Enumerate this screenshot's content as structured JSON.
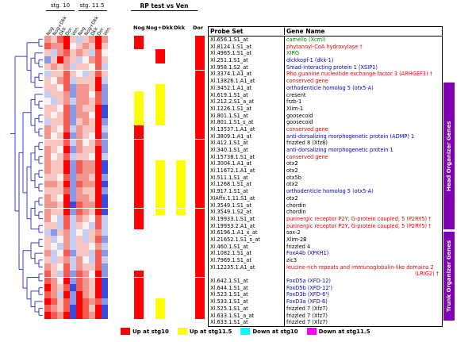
{
  "figure": {
    "stage_labels": [
      "stg. 10",
      "stg. 11.5"
    ],
    "rp_header": "RP test vs Ven",
    "rp_columns": [
      "Nog",
      "Nog+Dkk",
      "Dkk",
      "Dor"
    ],
    "heat_columns": [
      "Nog",
      "Nog+Dkk",
      "Dkk",
      "Dor",
      "Ven",
      "Nog",
      "Nog+Dkk",
      "Dkk",
      "Dor",
      "Ven"
    ],
    "table_headers": [
      "Probe Set",
      "Gene Name"
    ],
    "side_bars": [
      {
        "label": "Head Organizer Genes",
        "color": "#8000b4"
      },
      {
        "label": "Trunk Organizer Genes",
        "color": "#8000b4"
      }
    ],
    "legend": [
      {
        "label": "Up at stg10",
        "color": "#ff0000"
      },
      {
        "label": "Up at stg11.5",
        "color": "#ffff00"
      },
      {
        "label": "Down at stg10",
        "color": "#00ffff"
      },
      {
        "label": "Down at stg11.5",
        "color": "#ff00ff"
      }
    ]
  },
  "chart_data": {
    "type": "heatmap",
    "stage_groups": [
      "stg. 10",
      "stg. 11.5"
    ],
    "palette": {
      "r4": "#ff0000",
      "r3": "#f55a50",
      "r2": "#f2958d",
      "r1": "#f7c6c0",
      "w": "#faf2f0",
      "b1": "#c5cdf2",
      "b2": "#8b9ae8",
      "b3": "#3a4ade"
    },
    "gene_colors": {
      "green": "#008000",
      "red": "#ee0000",
      "blue": "#0000bb",
      "black": "#000000"
    },
    "rp_mark_colors": {
      "red": "#ff0000",
      "yellow": "#ffff00",
      "cyan": "#00ffff",
      "magenta": "#ff00ff"
    },
    "rows": [
      {
        "probe": "Xl.656.1.S1_at",
        "gene": "camello (Xcml)",
        "gene_color": "green",
        "heat": [
          "r2",
          "r1",
          "r3",
          "r4",
          "r1",
          "b1",
          "r1",
          "r2",
          "r4",
          "r2"
        ],
        "rp": [
          "red",
          "",
          "",
          "red"
        ]
      },
      {
        "probe": "Xl.8124.1.S1_at",
        "gene": "phytanoyl-CoA hydroxylase †",
        "gene_color": "red",
        "heat": [
          "r3",
          "r2",
          "r2",
          "r4",
          "w",
          "r1",
          "r2",
          "r1",
          "r4",
          "r1"
        ],
        "rp": [
          "red",
          "",
          "",
          "red"
        ]
      },
      {
        "probe": "Xl.4965.1.S1_at",
        "gene": "XIRG",
        "gene_color": "green",
        "heat": [
          "r1",
          "b1",
          "r2",
          "r3",
          "r1",
          "r2",
          "r1",
          "b1",
          "r3",
          "w"
        ],
        "rp": [
          "",
          "red",
          "",
          "red"
        ]
      },
      {
        "probe": "Xl.251.1.S1_at",
        "gene": "dickkopf-1 (dkk-1)",
        "gene_color": "blue",
        "heat": [
          "b2",
          "r1",
          "r4",
          "r2",
          "r1",
          "b1",
          "w",
          "r2",
          "r3",
          "r1"
        ],
        "rp": [
          "",
          "red",
          "",
          "red"
        ]
      },
      {
        "probe": "Xl.958.1.S2_at",
        "gene": "Smad-interacting protein 1 (XSIP1)",
        "gene_color": "blue",
        "heat": [
          "r1",
          "r2",
          "r1",
          "r2",
          "b1",
          "r1",
          "r1",
          "w",
          "r3",
          "b1"
        ],
        "rp": [
          "",
          "",
          "",
          "red"
        ]
      },
      {
        "probe": "Xl.3374.1.A1_at",
        "gene": "Rho guanine nucleotide exchange factor 3 (ARHGEF3) †",
        "gene_color": "red",
        "heat": [
          "b1",
          "r1",
          "r1",
          "r3",
          "r1",
          "w",
          "b1",
          "r1",
          "r3",
          "r1"
        ],
        "rp": [
          "",
          "",
          "",
          "red"
        ]
      },
      {
        "probe": "Xl.13826.1.A1_at",
        "gene": "conserved gene",
        "gene_color": "red",
        "heat": [
          "r1",
          "w",
          "r2",
          "r3",
          "b1",
          "r1",
          "r1",
          "r1",
          "r4",
          "b1"
        ],
        "rp": [
          "",
          "",
          "",
          "red"
        ]
      },
      {
        "probe": "Xl.3452.1.A1_at",
        "gene": "orthodenticle homolog 5 (otx5-A)",
        "gene_color": "blue",
        "heat": [
          "r1",
          "r1",
          "w",
          "r3",
          "b2",
          "r2",
          "r2",
          "r1",
          "r4",
          "b2"
        ],
        "rp": [
          "",
          "yellow",
          "",
          "red"
        ]
      },
      {
        "probe": "Xl.619.1.S1_at",
        "gene": "cresent",
        "gene_color": "black",
        "heat": [
          "b1",
          "r1",
          "r1",
          "r2",
          "b2",
          "r2",
          "r2",
          "w",
          "r3",
          "b2"
        ],
        "rp": [
          "yellow",
          "yellow",
          "",
          "red"
        ]
      },
      {
        "probe": "Xl.212.2.S1_a_at",
        "gene": "frzb-1",
        "gene_color": "black",
        "heat": [
          "w",
          "b1",
          "r1",
          "r2",
          "b1",
          "r2",
          "r2",
          "r1",
          "r3",
          "b2"
        ],
        "rp": [
          "yellow",
          "yellow",
          "",
          "red"
        ]
      },
      {
        "probe": "Xl.1226.1.S1_at",
        "gene": "Xlim-1",
        "gene_color": "black",
        "heat": [
          "r1",
          "r1",
          "w",
          "r3",
          "b2",
          "r2",
          "r1",
          "r1",
          "r4",
          "b3"
        ],
        "rp": [
          "yellow",
          "yellow",
          "",
          "red"
        ]
      },
      {
        "probe": "Xl.801.1.S1_at",
        "gene": "goosecoid",
        "gene_color": "black",
        "heat": [
          "r1",
          "w",
          "r1",
          "r3",
          "b2",
          "r2",
          "r2",
          "w",
          "r4",
          "b3"
        ],
        "rp": [
          "yellow",
          "yellow",
          "",
          "red"
        ]
      },
      {
        "probe": "Xl.801.1.S1_s_at",
        "gene": "goosecoid",
        "gene_color": "black",
        "heat": [
          "b1",
          "r1",
          "r1",
          "r3",
          "b2",
          "r1",
          "r2",
          "r1",
          "r4",
          "b2"
        ],
        "rp": [
          "yellow",
          "yellow",
          "",
          "red"
        ]
      },
      {
        "probe": "Xl.13537.1.A1_at",
        "gene": "conserved gene",
        "gene_color": "red",
        "heat": [
          "r2",
          "r1",
          "w",
          "r3",
          "b1",
          "r2",
          "r1",
          "r1",
          "r4",
          "b1"
        ],
        "rp": [
          "red",
          "",
          "",
          "red"
        ]
      },
      {
        "probe": "Xl.3809.1.A1_at",
        "gene": "anti-dorsalizing morphogenetic protein (ADMP) 1",
        "gene_color": "blue",
        "heat": [
          "r2",
          "w",
          "r1",
          "r4",
          "b2",
          "r2",
          "r1",
          "w",
          "r4",
          "b2"
        ],
        "rp": [
          "red",
          "",
          "",
          "red"
        ]
      },
      {
        "probe": "Xl.412.1.S1_at",
        "gene": "frizzled 8 (Xfz8)",
        "gene_color": "black",
        "heat": [
          "r1",
          "r1",
          "r1",
          "r3",
          "b1",
          "r2",
          "w",
          "r1",
          "r3",
          "b2"
        ],
        "rp": [
          "red",
          "",
          "",
          "red"
        ]
      },
      {
        "probe": "Xl.340.1.S1_at",
        "gene": "anti-dorsalizing morphogenetic protein 1",
        "gene_color": "blue",
        "heat": [
          "r2",
          "r1",
          "w",
          "r4",
          "b2",
          "r2",
          "r1",
          "r1",
          "r4",
          "b2"
        ],
        "rp": [
          "red",
          "",
          "",
          "red"
        ]
      },
      {
        "probe": "Xl.15738.1.S1_at",
        "gene": "conserved gene",
        "gene_color": "red",
        "heat": [
          "r2",
          "w",
          "r1",
          "r3",
          "b1",
          "r1",
          "r1",
          "w",
          "r4",
          "b1"
        ],
        "rp": [
          "red",
          "",
          "",
          "red"
        ]
      },
      {
        "probe": "Xl.3004.1.A1_at",
        "gene": "otx2",
        "gene_color": "black",
        "heat": [
          "r2",
          "r1",
          "r1",
          "r4",
          "b2",
          "r3",
          "r2",
          "r2",
          "r4",
          "b3"
        ],
        "rp": [
          "red",
          "yellow",
          "yellow",
          "red"
        ]
      },
      {
        "probe": "Xl.11672.1.A1_at",
        "gene": "otx2",
        "gene_color": "black",
        "heat": [
          "r2",
          "r1",
          "r1",
          "r4",
          "b2",
          "r3",
          "r2",
          "r2",
          "r4",
          "b3"
        ],
        "rp": [
          "red",
          "yellow",
          "yellow",
          "red"
        ]
      },
      {
        "probe": "Xl.511.1.S1_at",
        "gene": "otx5b",
        "gene_color": "black",
        "heat": [
          "r1",
          "r1",
          "w",
          "r3",
          "b2",
          "r2",
          "r2",
          "r1",
          "r4",
          "b2"
        ],
        "rp": [
          "red",
          "yellow",
          "yellow",
          "red"
        ]
      },
      {
        "probe": "Xl.1268.1.S1_at",
        "gene": "otx2",
        "gene_color": "black",
        "heat": [
          "r2",
          "r2",
          "r1",
          "r4",
          "b2",
          "r3",
          "r2",
          "r2",
          "r4",
          "b3"
        ],
        "rp": [
          "red",
          "yellow",
          "yellow",
          "red"
        ]
      },
      {
        "probe": "Xl.917.1.S1_at",
        "gene": "orthodenticle homolog 5 (otx5-A)",
        "gene_color": "blue",
        "heat": [
          "r1",
          "r1",
          "r1",
          "r3",
          "b2",
          "r2",
          "r1",
          "r1",
          "r4",
          "b2"
        ],
        "rp": [
          "red",
          "yellow",
          "yellow",
          "red"
        ]
      },
      {
        "probe": "XlAffx.1.11.S1_at",
        "gene": "otx2",
        "gene_color": "black",
        "heat": [
          "r2",
          "r1",
          "w",
          "r4",
          "b2",
          "r2",
          "r2",
          "r1",
          "r4",
          "b3"
        ],
        "rp": [
          "red",
          "yellow",
          "yellow",
          "red"
        ]
      },
      {
        "probe": "Xl.3549.1.S1_at",
        "gene": "chordin",
        "gene_color": "black",
        "heat": [
          "r2",
          "r2",
          "r1",
          "r4",
          "b3",
          "r3",
          "r2",
          "r2",
          "r4",
          "b3"
        ],
        "rp": [
          "red",
          "yellow",
          "yellow",
          "red"
        ]
      },
      {
        "probe": "Xl.3549.1.S2_at",
        "gene": "chordin",
        "gene_color": "black",
        "heat": [
          "r2",
          "r1",
          "r1",
          "r4",
          "b2",
          "r3",
          "r2",
          "r1",
          "r4",
          "b3"
        ],
        "rp": [
          "red",
          "yellow",
          "yellow",
          "red"
        ]
      },
      {
        "probe": "Xl.19933.1.S1_at",
        "gene": "purinergic receptor P2Y, G-protein coupled, 5 (P2RY5) †",
        "gene_color": "red",
        "heat": [
          "r2",
          "w",
          "b1",
          "r3",
          "b1",
          "r2",
          "r1",
          "w",
          "r3",
          "b1"
        ],
        "rp": [
          "red",
          "",
          "",
          "red"
        ]
      },
      {
        "probe": "Xl.19933.2.A1_at",
        "gene": "purinergic receptor P2Y, G-protein coupled, 5 (P2RY5) †",
        "gene_color": "red",
        "heat": [
          "r1",
          "r1",
          "b1",
          "r3",
          "b1",
          "r1",
          "w",
          "b1",
          "r3",
          "b1"
        ],
        "rp": [
          "red",
          "",
          "",
          "red"
        ]
      },
      {
        "probe": "Xl.6196.1.A1_x_at",
        "gene": "sox-2",
        "gene_color": "black",
        "heat": [
          "b1",
          "b2",
          "r1",
          "r2",
          "b1",
          "w",
          "b1",
          "r1",
          "r2",
          "b1"
        ],
        "rp": [
          "",
          "",
          "",
          "red"
        ]
      },
      {
        "probe": "Xl.21652.1.S1_s_at",
        "gene": "Xlim-2B",
        "gene_color": "black",
        "heat": [
          "r1",
          "b1",
          "w",
          "r2",
          "b1",
          "r1",
          "b1",
          "r1",
          "r3",
          "b2"
        ],
        "rp": [
          "",
          "",
          "",
          "red"
        ]
      },
      {
        "probe": "Xl.460.1.S1_at",
        "gene": "frizzled 4",
        "gene_color": "black",
        "heat": [
          "r1",
          "w",
          "b1",
          "r2",
          "b1",
          "r1",
          "r1",
          "w",
          "r2",
          "b1"
        ],
        "rp": [
          "",
          "",
          "",
          "red"
        ]
      },
      {
        "probe": "Xl.1082.1.S1_at",
        "gene": "FoxA4b (XFKH1)",
        "gene_color": "blue",
        "heat": [
          "r2",
          "b1",
          "w",
          "r3",
          "b2",
          "r1",
          "r1",
          "b1",
          "r3",
          "b2"
        ],
        "rp": [
          "",
          "",
          "",
          "red"
        ]
      },
      {
        "probe": "Xl.7969.1.S1_at",
        "gene": "zic3",
        "gene_color": "black",
        "heat": [
          "r1",
          "b1",
          "r1",
          "r2",
          "b1",
          "r2",
          "w",
          "b1",
          "r3",
          "b1"
        ],
        "rp": [
          "",
          "",
          "",
          "red"
        ]
      },
      {
        "probe": "Xl.12235.1.A1_at",
        "gene": "leucine-rich repeats and immunoglobulin-like domains 2",
        "gene_line2": "(LRIG2) †",
        "gene_color": "red",
        "heat": [
          "r2",
          "r1",
          "w",
          "r3",
          "b1",
          "r2",
          "r1",
          "r1",
          "r3",
          "b2"
        ],
        "rp": [
          "",
          "",
          "",
          "red"
        ]
      },
      {
        "probe": "Xl.642.1.S1_at",
        "gene": "FoxD5a (XFD-12)",
        "gene_color": "blue",
        "heat": [
          "r3",
          "r1",
          "b1",
          "r3",
          "b2",
          "r3",
          "r2",
          "w",
          "r4",
          "b2"
        ],
        "rp": [
          "red",
          "",
          "",
          "red"
        ]
      },
      {
        "probe": "Xl.644.1.S1_at",
        "gene": "FoxD5b (XFD-12')",
        "gene_color": "blue",
        "heat": [
          "r3",
          "r2",
          "w",
          "r4",
          "b2",
          "r3",
          "r2",
          "r1",
          "r4",
          "b3"
        ],
        "rp": [
          "red",
          "",
          "",
          "red"
        ]
      },
      {
        "probe": "Xl.523.1.S1_at",
        "gene": "FoxD3b (XFD-6')",
        "gene_color": "blue",
        "heat": [
          "r4",
          "r2",
          "r1",
          "r3",
          "b3",
          "r3",
          "r2",
          "r1",
          "r4",
          "b3"
        ],
        "rp": [
          "red",
          "",
          "",
          "red"
        ]
      },
      {
        "probe": "Xl.533.1.S1_at",
        "gene": "FoxD3a (XFD-6)",
        "gene_color": "blue",
        "heat": [
          "r3",
          "r2",
          "b1",
          "r4",
          "b2",
          "r4",
          "r2",
          "r1",
          "r4",
          "b3"
        ],
        "rp": [
          "red",
          "",
          "",
          "red"
        ]
      },
      {
        "probe": "Xl.525.1.S1_at",
        "gene": "frizzled 7 (Xfz7)",
        "gene_color": "black",
        "heat": [
          "r4",
          "r3",
          "r1",
          "r3",
          "b2",
          "r4",
          "r3",
          "r2",
          "r3",
          "b2"
        ],
        "rp": [
          "red",
          "yellow",
          "",
          "red"
        ]
      },
      {
        "probe": "Xl.633.1.S1_a_at",
        "gene": "frizzled 7 (Xfz7)",
        "gene_color": "black",
        "heat": [
          "r3",
          "r2",
          "r1",
          "r3",
          "b3",
          "r4",
          "r3",
          "r1",
          "r4",
          "b3"
        ],
        "rp": [
          "red",
          "yellow",
          "",
          "red"
        ]
      },
      {
        "probe": "Xl.633.1.S1_at",
        "gene": "frizzled 7 (Xfz7)",
        "gene_color": "black",
        "heat": [
          "r4",
          "r3",
          "r2",
          "r4",
          "b3",
          "r4",
          "r3",
          "r2",
          "r4",
          "b3"
        ],
        "rp": [
          "red",
          "yellow",
          "",
          "red"
        ]
      }
    ],
    "dendrogram": [
      [
        [
          0,
          1
        ],
        [
          [
            2,
            [
              3,
              4
            ]
          ],
          [
            [
              5,
              6
            ],
            7
          ]
        ]
      ],
      [
        [
          [
            [
              8,
              [
                9,
                10
              ]
            ],
            [
              [
                11,
                12
              ],
              [
                13,
                14
              ]
            ]
          ],
          [
            [
              [
                [
                  15,
                  16
                ],
                [
                  17,
                  18
                ]
              ],
              [
                [
                  19,
                  20
                ],
                [
                  21,
                  22
                ]
              ]
            ],
            [
              [
                [
                  23,
                  24
                ],
                [
                  25,
                  26
                ]
              ],
              [
                27,
                28
              ]
            ]
          ]
        ],
        [
          [
            [
              29,
              30
            ],
            [
              31,
              [
                32,
                33
              ]
            ]
          ],
          [
            [
              34,
              35
            ],
            [
              [
                36,
                37
              ],
              [
                38,
                [
                  39,
                  40
                ]
              ]
            ]
          ]
        ]
      ]
    ]
  }
}
